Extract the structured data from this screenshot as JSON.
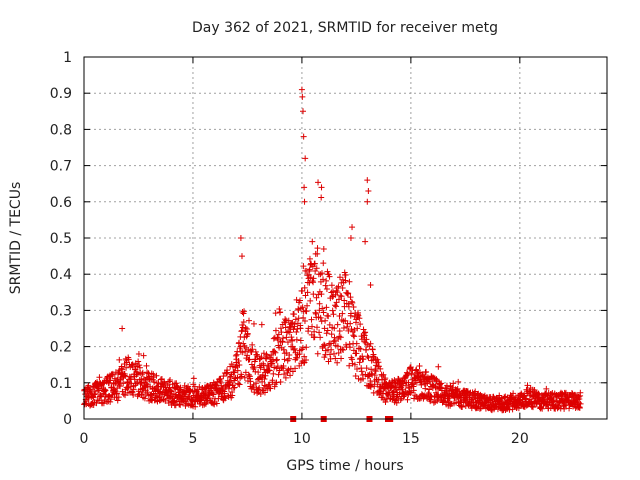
{
  "chart_data": {
    "type": "scatter",
    "title": "Day 362 of 2021, SRMTID for receiver metg",
    "xlabel": "GPS time / hours",
    "ylabel": "SRMTID / TECUs",
    "xlim": [
      0,
      24
    ],
    "ylim": [
      0,
      1
    ],
    "xticks": [
      0,
      5,
      10,
      15,
      20
    ],
    "yticks": [
      0,
      0.1,
      0.2,
      0.3,
      0.4,
      0.5,
      0.6,
      0.7,
      0.8,
      0.9,
      1
    ],
    "xtick_labels": [
      "0",
      "5",
      "10",
      "15",
      "20"
    ],
    "ytick_labels": [
      "0",
      "0.1",
      "0.2",
      "0.3",
      "0.4",
      "0.5",
      "0.6",
      "0.7",
      "0.8",
      "0.9",
      "1"
    ],
    "grid": true,
    "marker": "+",
    "color": "#dd0000",
    "baseline_profile_hours": [
      0,
      0.5,
      1,
      1.5,
      2,
      2.5,
      3,
      4,
      5,
      6,
      6.5,
      7,
      7.3,
      7.6,
      8,
      8.5,
      9,
      9.5,
      10,
      10.3,
      10.7,
      11,
      11.5,
      12,
      12.4,
      12.8,
      13.2,
      13.6,
      14,
      14.5,
      15,
      15.5,
      16,
      17,
      18,
      19,
      20,
      20.5,
      21,
      22,
      22.8
    ],
    "baseline_profile_srmtid": [
      0.06,
      0.07,
      0.08,
      0.09,
      0.12,
      0.11,
      0.09,
      0.07,
      0.06,
      0.07,
      0.09,
      0.12,
      0.22,
      0.15,
      0.12,
      0.14,
      0.18,
      0.21,
      0.25,
      0.3,
      0.33,
      0.3,
      0.25,
      0.3,
      0.22,
      0.18,
      0.14,
      0.1,
      0.07,
      0.08,
      0.1,
      0.1,
      0.08,
      0.06,
      0.05,
      0.04,
      0.05,
      0.06,
      0.05,
      0.05,
      0.05
    ],
    "notable_points": [
      {
        "x": 1.75,
        "y": 0.25
      },
      {
        "x": 7.2,
        "y": 0.5
      },
      {
        "x": 7.25,
        "y": 0.45
      },
      {
        "x": 10.0,
        "y": 0.91
      },
      {
        "x": 10.02,
        "y": 0.89
      },
      {
        "x": 10.05,
        "y": 0.85
      },
      {
        "x": 10.08,
        "y": 0.78
      },
      {
        "x": 10.15,
        "y": 0.72
      },
      {
        "x": 10.1,
        "y": 0.64
      },
      {
        "x": 10.12,
        "y": 0.6
      },
      {
        "x": 10.9,
        "y": 0.64
      },
      {
        "x": 12.3,
        "y": 0.53
      },
      {
        "x": 12.25,
        "y": 0.5
      },
      {
        "x": 13.0,
        "y": 0.66
      },
      {
        "x": 13.05,
        "y": 0.63
      },
      {
        "x": 13.0,
        "y": 0.6
      },
      {
        "x": 12.9,
        "y": 0.49
      },
      {
        "x": 13.15,
        "y": 0.37
      },
      {
        "x": 11.2,
        "y": 0.4
      }
    ],
    "x_axis_markers_hours": [
      9.6,
      11.0,
      13.1,
      13.95,
      14.05
    ]
  }
}
